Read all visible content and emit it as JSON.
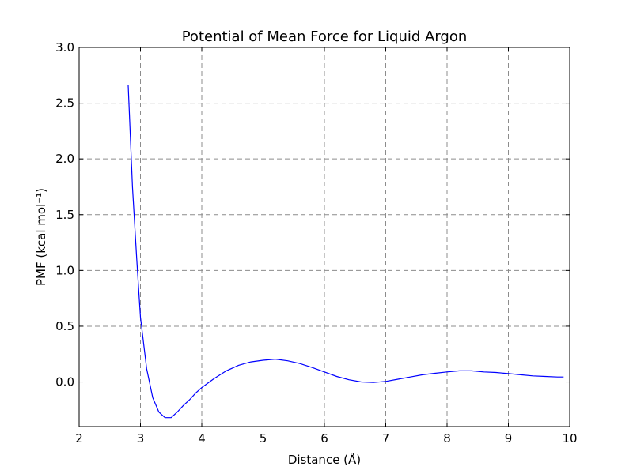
{
  "chart_data": {
    "type": "line",
    "title": "Potential of Mean Force for Liquid Argon",
    "xlabel": "Distance (Å)",
    "ylabel": "PMF (kcal mol⁻¹)",
    "xlim": [
      2,
      10
    ],
    "ylim": [
      -0.4,
      3.0
    ],
    "xticks": [
      "2",
      "3",
      "4",
      "5",
      "6",
      "7",
      "8",
      "9",
      "10"
    ],
    "yticks": [
      "0.0",
      "0.5",
      "1.0",
      "1.5",
      "2.0",
      "2.5",
      "3.0"
    ],
    "grid": true,
    "series_color": "#0000ff",
    "series": [
      {
        "x": [
          2.8,
          2.87,
          2.94,
          3.0,
          3.1,
          3.2,
          3.3,
          3.4,
          3.5,
          3.6,
          3.7,
          3.8,
          3.9,
          4.0,
          4.2,
          4.4,
          4.6,
          4.8,
          5.0,
          5.2,
          5.4,
          5.6,
          5.8,
          6.0,
          6.2,
          6.4,
          6.6,
          6.8,
          7.0,
          7.2,
          7.4,
          7.6,
          7.8,
          8.0,
          8.2,
          8.4,
          8.6,
          8.8,
          9.0,
          9.2,
          9.4,
          9.6,
          9.8,
          9.9
        ],
        "y": [
          2.66,
          1.75,
          1.1,
          0.58,
          0.12,
          -0.14,
          -0.27,
          -0.32,
          -0.32,
          -0.27,
          -0.21,
          -0.16,
          -0.1,
          -0.05,
          0.03,
          0.1,
          0.15,
          0.18,
          0.195,
          0.205,
          0.19,
          0.165,
          0.13,
          0.09,
          0.05,
          0.02,
          0.0,
          -0.005,
          0.005,
          0.025,
          0.045,
          0.065,
          0.078,
          0.09,
          0.1,
          0.1,
          0.09,
          0.085,
          0.075,
          0.065,
          0.055,
          0.05,
          0.045,
          0.045
        ]
      }
    ]
  }
}
